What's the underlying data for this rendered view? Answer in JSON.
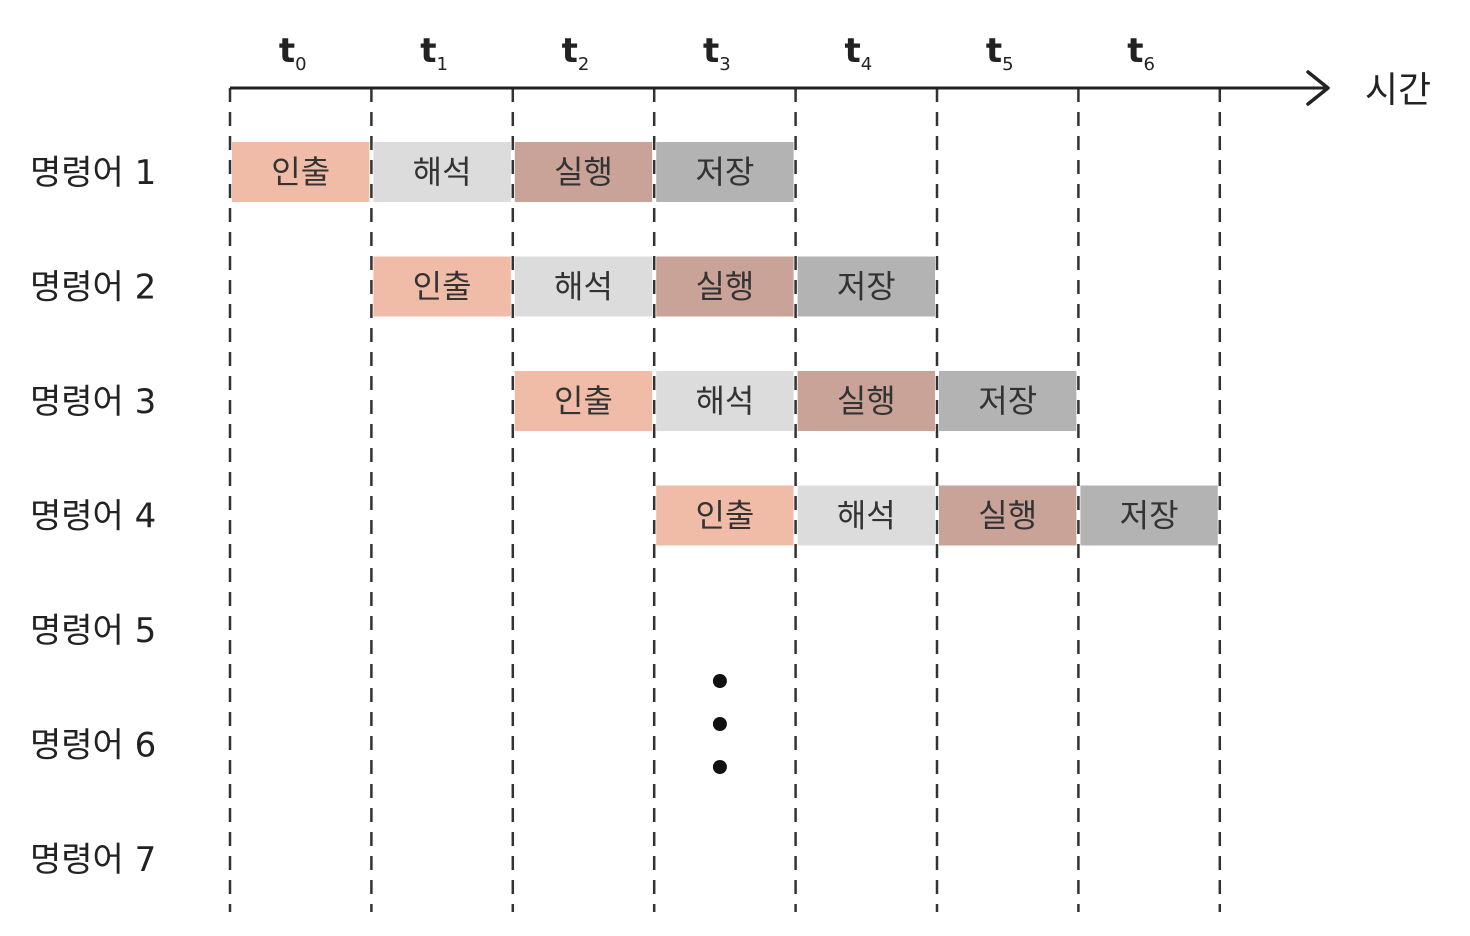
{
  "axis": {
    "label": "시간",
    "ticks": [
      {
        "main": "t",
        "sub": "0"
      },
      {
        "main": "t",
        "sub": "1"
      },
      {
        "main": "t",
        "sub": "2"
      },
      {
        "main": "t",
        "sub": "3"
      },
      {
        "main": "t",
        "sub": "4"
      },
      {
        "main": "t",
        "sub": "5"
      },
      {
        "main": "t",
        "sub": "6"
      }
    ]
  },
  "rows": [
    {
      "label": "명령어 1",
      "start": 0
    },
    {
      "label": "명령어 2",
      "start": 1
    },
    {
      "label": "명령어 3",
      "start": 2
    },
    {
      "label": "명령어 4",
      "start": 3
    },
    {
      "label": "명령어 5",
      "start": null
    },
    {
      "label": "명령어 6",
      "start": null
    },
    {
      "label": "명령어 7",
      "start": null
    }
  ],
  "stages": [
    {
      "label": "인출",
      "color": "#f0bca8"
    },
    {
      "label": "해석",
      "color": "#dcdcdc"
    },
    {
      "label": "실행",
      "color": "#c9a398"
    },
    {
      "label": "저장",
      "color": "#b3b3b3"
    }
  ],
  "ellipsis": {
    "dots": 3
  }
}
